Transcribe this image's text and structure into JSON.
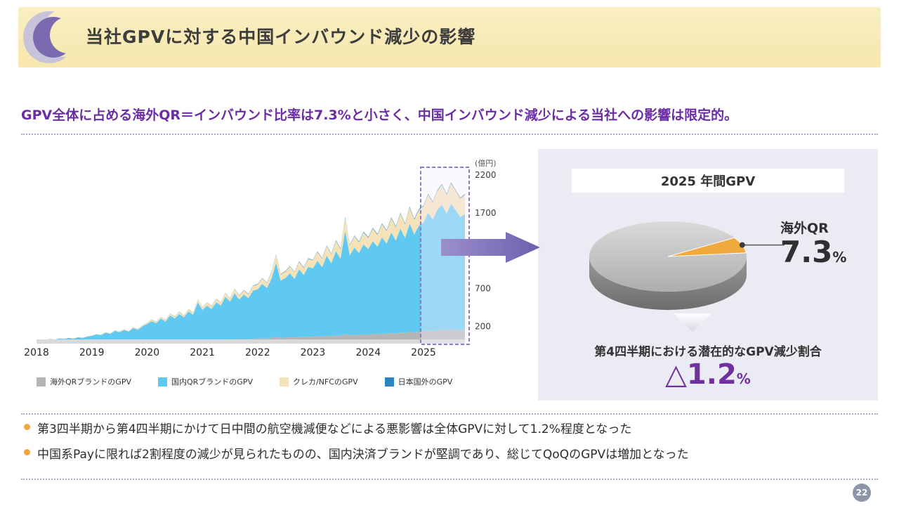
{
  "header": {
    "title": "当社GPVに対する中国インバウンド減少の影響"
  },
  "headline": {
    "text": "GPV全体に占める海外QR＝インバウンド比率は7.3%と小さく、中国インバウンド減少による当社への影響は限定的。"
  },
  "chart_data": [
    {
      "type": "area",
      "unit_label": "(億円)",
      "x_years": [
        2018,
        2019,
        2020,
        2021,
        2022,
        2023,
        2024,
        2025
      ],
      "points_per_year": 12,
      "y_ticks": [
        200,
        700,
        1200,
        1700,
        2200
      ],
      "ylim": [
        0,
        2330
      ],
      "highlight_from_index": 84,
      "series": [
        {
          "name": "海外QRブランドのGPV",
          "color": "#b5b5b5",
          "values": [
            0,
            1,
            0,
            1,
            1,
            1,
            1,
            1,
            1,
            2,
            1,
            2,
            2,
            3,
            3,
            4,
            3,
            5,
            4,
            5,
            5,
            6,
            6,
            7,
            9,
            10,
            10,
            12,
            11,
            14,
            13,
            16,
            14,
            18,
            16,
            24,
            20,
            23,
            21,
            26,
            24,
            30,
            27,
            33,
            30,
            33,
            31,
            37,
            39,
            43,
            41,
            48,
            62,
            48,
            51,
            56,
            52,
            60,
            56,
            64,
            63,
            71,
            66,
            77,
            71,
            83,
            77,
            104,
            82,
            90,
            86,
            95,
            92,
            101,
            96,
            107,
            101,
            114,
            107,
            121,
            112,
            129,
            118,
            129,
            134,
            146,
            140,
            152,
            160,
            151,
            164,
            157,
            151,
            156
          ]
        },
        {
          "name": "国内QRブランドのGPV",
          "color": "#5fc9f2",
          "values": [
            17,
            24,
            21,
            32,
            26,
            41,
            33,
            47,
            37,
            55,
            48,
            64,
            74,
            94,
            82,
            115,
            99,
            136,
            119,
            149,
            128,
            172,
            151,
            194,
            223,
            259,
            233,
            290,
            253,
            329,
            292,
            349,
            305,
            378,
            339,
            492,
            398,
            450,
            410,
            492,
            452,
            560,
            499,
            606,
            526,
            586,
            542,
            636,
            650,
            719,
            665,
            780,
            977,
            756,
            787,
            845,
            775,
            893,
            824,
            922,
            905,
            994,
            917,
            1057,
            964,
            1111,
            1018,
            1363,
            1055,
            1152,
            1084,
            1188,
            1129,
            1224,
            1157,
            1268,
            1193,
            1328,
            1228,
            1371,
            1256,
            1429,
            1299,
            1399,
            1437,
            1554,
            1471,
            1588,
            1648,
            1541,
            1656,
            1575,
            1493,
            1528
          ]
        },
        {
          "name": "クレカ/NFCのGPV",
          "color": "#f6e2b8",
          "values": [
            1,
            1,
            1,
            1,
            1,
            2,
            2,
            2,
            2,
            3,
            3,
            4,
            4,
            5,
            5,
            7,
            6,
            8,
            8,
            10,
            8,
            11,
            10,
            13,
            16,
            19,
            17,
            21,
            19,
            25,
            23,
            28,
            24,
            31,
            28,
            41,
            34,
            39,
            36,
            44,
            41,
            51,
            46,
            57,
            50,
            57,
            53,
            63,
            66,
            73,
            69,
            82,
            104,
            81,
            86,
            93,
            87,
            101,
            94,
            107,
            106,
            118,
            110,
            128,
            118,
            138,
            128,
            173,
            135,
            150,
            142,
            158,
            151,
            166,
            158,
            176,
            167,
            188,
            176,
            198,
            183,
            211,
            193,
            211,
            218,
            238,
            228,
            248,
            260,
            246,
            267,
            256,
            245,
            254
          ]
        },
        {
          "name": "日本国外のGPV",
          "color": "#2a85c0",
          "values": [
            0,
            0,
            0,
            0,
            0,
            0,
            0,
            0,
            0,
            0,
            0,
            0,
            0,
            0,
            0,
            0,
            0,
            1,
            1,
            1,
            1,
            1,
            1,
            1,
            2,
            2,
            2,
            2,
            2,
            2,
            2,
            2,
            2,
            3,
            2,
            3,
            3,
            3,
            3,
            3,
            3,
            4,
            3,
            4,
            4,
            4,
            4,
            4,
            5,
            5,
            5,
            5,
            7,
            5,
            6,
            6,
            6,
            6,
            6,
            7,
            6,
            7,
            7,
            8,
            7,
            8,
            7,
            10,
            8,
            8,
            8,
            9,
            8,
            9,
            9,
            9,
            9,
            10,
            9,
            10,
            9,
            11,
            10,
            11,
            11,
            12,
            11,
            12,
            12,
            12,
            13,
            12,
            11,
            12
          ]
        }
      ]
    },
    {
      "type": "pie",
      "title": "2025 年間GPV",
      "start_angle_deg": 6,
      "slices": [
        {
          "label": "海外QR",
          "value": 7.3,
          "color": "#f0a93c"
        },
        {
          "label": "",
          "value": 92.7,
          "color": "#c9c9c9"
        }
      ]
    }
  ],
  "panel": {
    "title": "2025 年間GPV",
    "slice_label": "海外QR",
    "slice_value": "7.3",
    "slice_unit": "%",
    "caption": "第4四半期における潜在的なGPV減少割合",
    "decline_value": "△1.2",
    "decline_unit": "%"
  },
  "bullets": {
    "items": [
      {
        "text": "第3四半期から第4四半期にかけて日中間の航空機減便などによる悪影響は全体GPVに対して1.2%程度となった"
      },
      {
        "text": "中国系Payに限れば2割程度の減少が見られたものの、国内決済ブランドが堅調であり、総じてQoQのGPVは増加となった"
      }
    ]
  },
  "page_number": "22"
}
